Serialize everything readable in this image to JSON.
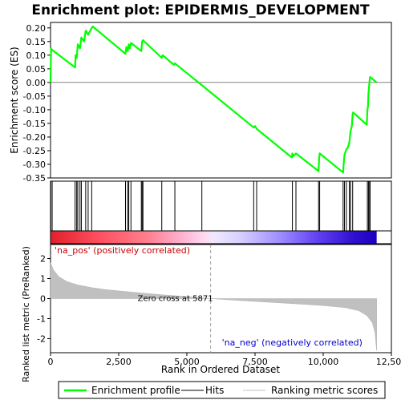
{
  "chart_data": {
    "type": "line",
    "title": "Enrichment plot: EPIDERMIS_DEVELOPMENT",
    "x_range": [
      0,
      12500
    ],
    "x_ticks": [
      0,
      2500,
      5000,
      7500,
      10000,
      12500
    ],
    "x_tick_labels": [
      "0",
      "2,500",
      "5,000",
      "7,500",
      "10,000",
      "12,500"
    ],
    "xlabel": "Rank in Ordered Dataset",
    "es_panel": {
      "ylabel": "Enrichment score (ES)",
      "ylim": [
        -0.35,
        0.22
      ],
      "y_ticks": [
        0.2,
        0.15,
        0.1,
        0.05,
        0.0,
        -0.05,
        -0.1,
        -0.15,
        -0.2,
        -0.25,
        -0.3,
        -0.35
      ],
      "y_tick_labels": [
        "0.20",
        "0.15",
        "0.10",
        "0.05",
        "0.00",
        "-0.05",
        "-0.10",
        "-0.15",
        "-0.20",
        "-0.25",
        "-0.30",
        "-0.35"
      ],
      "series_color": "#00ff00",
      "points": [
        [
          0,
          0.0
        ],
        [
          20,
          0.125
        ],
        [
          50,
          0.12
        ],
        [
          900,
          0.055
        ],
        [
          920,
          0.1
        ],
        [
          960,
          0.09
        ],
        [
          1000,
          0.14
        ],
        [
          1080,
          0.125
        ],
        [
          1130,
          0.165
        ],
        [
          1230,
          0.15
        ],
        [
          1290,
          0.19
        ],
        [
          1380,
          0.175
        ],
        [
          1510,
          0.2
        ],
        [
          1550,
          0.205
        ],
        [
          2750,
          0.105
        ],
        [
          2780,
          0.13
        ],
        [
          2830,
          0.115
        ],
        [
          2870,
          0.14
        ],
        [
          2910,
          0.125
        ],
        [
          2950,
          0.145
        ],
        [
          3330,
          0.115
        ],
        [
          3360,
          0.15
        ],
        [
          3390,
          0.155
        ],
        [
          4080,
          0.09
        ],
        [
          4110,
          0.1
        ],
        [
          4520,
          0.065
        ],
        [
          4560,
          0.07
        ],
        [
          5550,
          -0.01
        ],
        [
          7450,
          -0.165
        ],
        [
          7500,
          -0.16
        ],
        [
          7560,
          -0.17
        ],
        [
          8850,
          -0.275
        ],
        [
          8870,
          -0.26
        ],
        [
          8900,
          -0.27
        ],
        [
          9000,
          -0.26
        ],
        [
          9830,
          -0.325
        ],
        [
          9850,
          -0.28
        ],
        [
          9870,
          -0.26
        ],
        [
          10730,
          -0.33
        ],
        [
          10750,
          -0.3
        ],
        [
          10780,
          -0.265
        ],
        [
          10850,
          -0.245
        ],
        [
          10900,
          -0.24
        ],
        [
          10960,
          -0.22
        ],
        [
          11000,
          -0.18
        ],
        [
          11050,
          -0.16
        ],
        [
          11080,
          -0.115
        ],
        [
          11100,
          -0.11
        ],
        [
          11600,
          -0.155
        ],
        [
          11620,
          -0.1
        ],
        [
          11640,
          -0.09
        ],
        [
          11660,
          -0.04
        ],
        [
          11700,
          0.005
        ],
        [
          11720,
          0.02
        ],
        [
          11960,
          0.0
        ]
      ]
    },
    "hits": [
      10,
      60,
      900,
      960,
      1000,
      1080,
      1130,
      1290,
      1380,
      1510,
      2750,
      2830,
      2870,
      2950,
      3330,
      3360,
      3390,
      4080,
      4560,
      5550,
      7450,
      7560,
      8870,
      9000,
      9830,
      9870,
      10730,
      10780,
      10850,
      10960,
      11000,
      11080,
      11620,
      11660,
      11700,
      11720
    ],
    "metric_panel": {
      "ylabel": "Ranked list metric (PreRanked)",
      "ylim": [
        -2.7,
        2.7
      ],
      "y_ticks": [
        2,
        1,
        0,
        -1,
        -2
      ],
      "y_tick_labels": [
        "2",
        "1",
        "0",
        "-1",
        "-2"
      ],
      "n_genes": 11960,
      "zero_cross": 5871,
      "profile": [
        [
          0,
          1.8
        ],
        [
          100,
          1.45
        ],
        [
          300,
          1.1
        ],
        [
          600,
          0.85
        ],
        [
          1000,
          0.68
        ],
        [
          1500,
          0.55
        ],
        [
          2000,
          0.45
        ],
        [
          3000,
          0.32
        ],
        [
          4000,
          0.2
        ],
        [
          5000,
          0.1
        ],
        [
          5871,
          0.0
        ],
        [
          7000,
          -0.1
        ],
        [
          8000,
          -0.18
        ],
        [
          9000,
          -0.26
        ],
        [
          10000,
          -0.35
        ],
        [
          10800,
          -0.45
        ],
        [
          11300,
          -0.6
        ],
        [
          11600,
          -0.85
        ],
        [
          11800,
          -1.2
        ],
        [
          11900,
          -1.7
        ],
        [
          11960,
          -2.6
        ]
      ],
      "zero_cross_label": "Zero cross at 5871",
      "pos_label": "'na_pos' (positively correlated)",
      "neg_label": "'na_neg' (negatively correlated)",
      "pos_color": "#cc0000",
      "neg_color": "#0000cc"
    },
    "gradient_stops": [
      [
        0.0,
        "#e0202a"
      ],
      [
        0.15,
        "#ff5060"
      ],
      [
        0.3,
        "#ff8090"
      ],
      [
        0.4,
        "#ffb0d0"
      ],
      [
        0.47,
        "#ffd8f0"
      ],
      [
        0.5,
        "#f0e8ff"
      ],
      [
        0.58,
        "#d8d0ff"
      ],
      [
        0.7,
        "#a090ff"
      ],
      [
        0.82,
        "#6040f0"
      ],
      [
        0.93,
        "#3010d0"
      ],
      [
        1.0,
        "#2000c0"
      ]
    ],
    "legend": {
      "items": [
        {
          "label": "Enrichment profile",
          "color": "#00ff00"
        },
        {
          "label": "Hits",
          "color": "#000000"
        },
        {
          "label": "Ranking metric scores",
          "color": "#c0c0c0"
        }
      ]
    }
  }
}
